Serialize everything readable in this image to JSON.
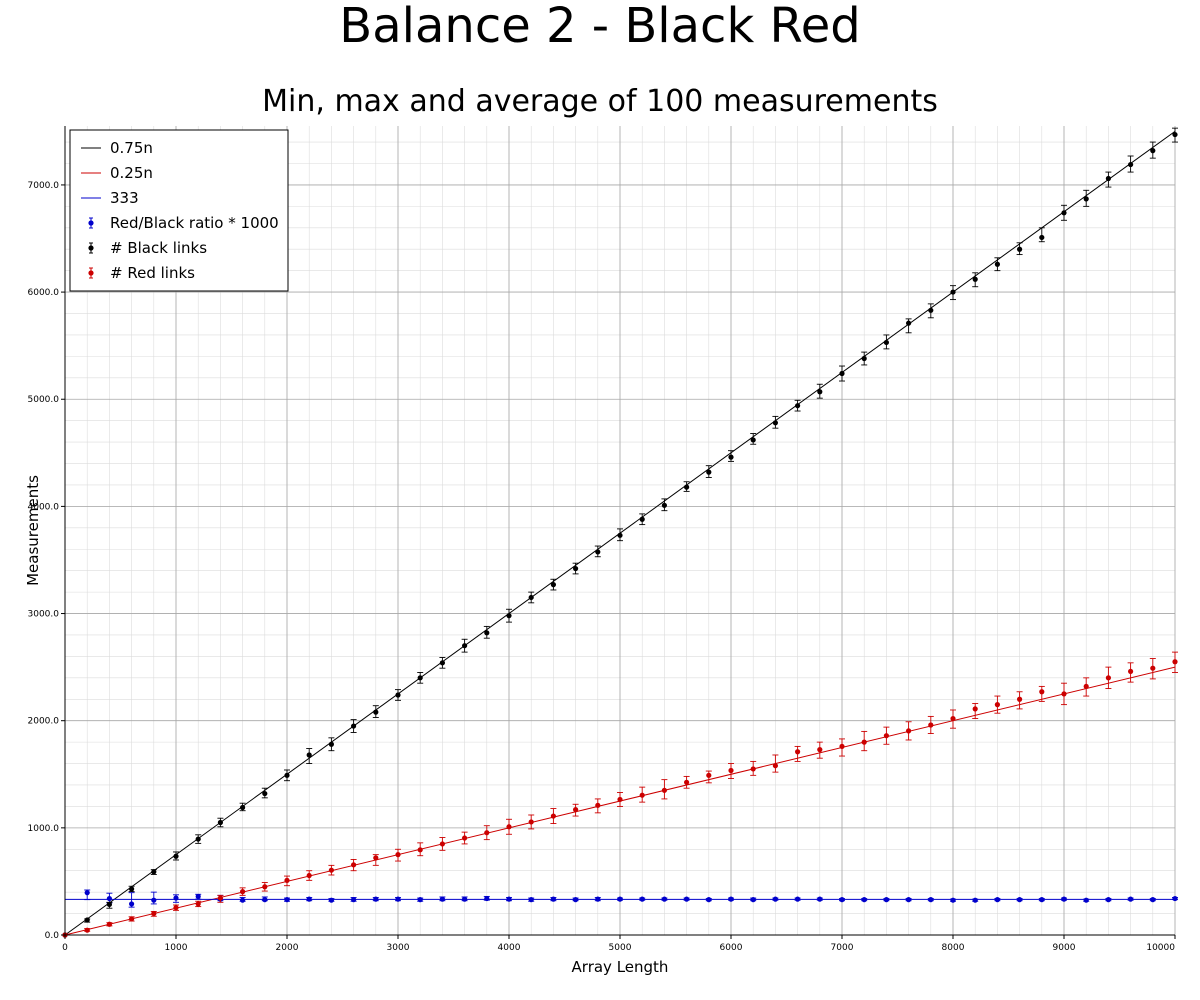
{
  "chart_data": {
    "type": "scatter",
    "title": "Balance 2 - Black Red",
    "subtitle": "Min, max and average of 100 measurements",
    "xlabel": "Array Length",
    "ylabel": "Measurements",
    "xlim": [
      0,
      10000
    ],
    "ylim": [
      0,
      7550
    ],
    "x_ticks": [
      0,
      1000,
      2000,
      3000,
      4000,
      5000,
      6000,
      7000,
      8000,
      9000,
      10000
    ],
    "x_tick_labels": [
      "0",
      "1000",
      "2000",
      "3000",
      "4000",
      "5000",
      "6000",
      "7000",
      "8000",
      "9000",
      "10000"
    ],
    "y_ticks": [
      0,
      1000,
      2000,
      3000,
      4000,
      5000,
      6000,
      7000
    ],
    "y_tick_labels": [
      "0.0",
      "1000.0",
      "2000.0",
      "3000.0",
      "4000.0",
      "5000.0",
      "6000.0",
      "7000.0"
    ],
    "grid": true,
    "legend_position": "top-left",
    "reference_lines": [
      {
        "name": "0.75n",
        "slope": 0.75,
        "intercept": 0,
        "color": "#000000"
      },
      {
        "name": "0.25n",
        "slope": 0.25,
        "intercept": 0,
        "color": "#cc0000"
      },
      {
        "name": "333",
        "slope": 0,
        "intercept": 333,
        "color": "#0000cc"
      }
    ],
    "x": [
      0,
      200,
      400,
      600,
      800,
      1000,
      1200,
      1400,
      1600,
      1800,
      2000,
      2200,
      2400,
      2600,
      2800,
      3000,
      3200,
      3400,
      3600,
      3800,
      4000,
      4200,
      4400,
      4600,
      4800,
      5000,
      5200,
      5400,
      5600,
      5800,
      6000,
      6200,
      6400,
      6600,
      6800,
      7000,
      7200,
      7400,
      7600,
      7800,
      8000,
      8200,
      8400,
      8600,
      8800,
      9000,
      9200,
      9400,
      9600,
      9800,
      10000
    ],
    "series": [
      {
        "name": "Red/Black ratio * 1000",
        "color": "#0000cc",
        "values": [
          0,
          395,
          340,
          290,
          325,
          345,
          360,
          335,
          325,
          330,
          330,
          335,
          325,
          330,
          335,
          335,
          330,
          335,
          335,
          340,
          335,
          330,
          335,
          330,
          335,
          335,
          335,
          335,
          335,
          330,
          335,
          330,
          335,
          335,
          335,
          330,
          330,
          330,
          330,
          330,
          325,
          325,
          330,
          330,
          330,
          335,
          325,
          330,
          335,
          330,
          340
        ],
        "min": [
          0,
          330,
          300,
          260,
          290,
          305,
          335,
          320,
          315,
          320,
          315,
          320,
          315,
          315,
          320,
          320,
          315,
          320,
          320,
          325,
          320,
          315,
          320,
          320,
          320,
          325,
          325,
          325,
          325,
          320,
          325,
          320,
          325,
          325,
          325,
          320,
          320,
          320,
          320,
          320,
          315,
          315,
          320,
          320,
          320,
          325,
          315,
          320,
          325,
          320,
          330
        ],
        "max": [
          0,
          420,
          390,
          395,
          400,
          375,
          380,
          370,
          350,
          355,
          345,
          350,
          340,
          350,
          350,
          350,
          345,
          355,
          355,
          360,
          350,
          345,
          350,
          345,
          350,
          345,
          345,
          345,
          345,
          340,
          345,
          345,
          345,
          345,
          345,
          340,
          340,
          340,
          340,
          340,
          335,
          335,
          340,
          340,
          340,
          345,
          335,
          340,
          345,
          340,
          350
        ]
      },
      {
        "name": "# Black links",
        "color": "#000000",
        "values": [
          0,
          140,
          285,
          430,
          590,
          735,
          895,
          1050,
          1190,
          1320,
          1490,
          1680,
          1780,
          1950,
          2080,
          2240,
          2400,
          2540,
          2700,
          2820,
          2980,
          3150,
          3270,
          3420,
          3575,
          3730,
          3880,
          4010,
          4180,
          4320,
          4460,
          4620,
          4780,
          4940,
          5070,
          5240,
          5380,
          5530,
          5710,
          5830,
          6000,
          6120,
          6260,
          6400,
          6510,
          6740,
          6870,
          7060,
          7190,
          7320,
          7470
        ],
        "min": [
          0,
          120,
          250,
          405,
          565,
          700,
          855,
          1010,
          1160,
          1280,
          1440,
          1600,
          1720,
          1890,
          2030,
          2190,
          2350,
          2490,
          2640,
          2770,
          2920,
          3100,
          3220,
          3370,
          3530,
          3680,
          3830,
          3960,
          4140,
          4270,
          4420,
          4580,
          4730,
          4890,
          5010,
          5170,
          5320,
          5470,
          5620,
          5760,
          5930,
          6050,
          6200,
          6350,
          6470,
          6670,
          6800,
          6980,
          7120,
          7250,
          7400
        ],
        "max": [
          0,
          150,
          305,
          455,
          610,
          775,
          935,
          1090,
          1230,
          1370,
          1540,
          1740,
          1840,
          2010,
          2140,
          2290,
          2450,
          2590,
          2760,
          2880,
          3040,
          3200,
          3320,
          3470,
          3630,
          3790,
          3930,
          4070,
          4230,
          4380,
          4520,
          4680,
          4840,
          4990,
          5140,
          5310,
          5440,
          5600,
          5750,
          5890,
          6060,
          6180,
          6320,
          6460,
          6600,
          6810,
          6950,
          7120,
          7270,
          7400,
          7530
        ]
      },
      {
        "name": "# Red links",
        "color": "#cc0000",
        "values": [
          0,
          45,
          100,
          150,
          200,
          255,
          290,
          345,
          405,
          450,
          510,
          555,
          605,
          655,
          720,
          750,
          795,
          850,
          905,
          955,
          1010,
          1055,
          1110,
          1170,
          1210,
          1265,
          1305,
          1350,
          1425,
          1490,
          1535,
          1550,
          1580,
          1710,
          1730,
          1760,
          1800,
          1860,
          1905,
          1960,
          2020,
          2110,
          2150,
          2200,
          2270,
          2250,
          2320,
          2400,
          2460,
          2490,
          2550
        ],
        "min": [
          0,
          35,
          85,
          130,
          175,
          230,
          265,
          305,
          370,
          410,
          460,
          510,
          560,
          600,
          650,
          690,
          740,
          790,
          850,
          890,
          940,
          990,
          1040,
          1110,
          1140,
          1200,
          1240,
          1270,
          1370,
          1420,
          1460,
          1490,
          1520,
          1620,
          1650,
          1670,
          1720,
          1780,
          1820,
          1880,
          1930,
          2020,
          2070,
          2110,
          2180,
          2150,
          2230,
          2300,
          2360,
          2390,
          2450
        ],
        "max": [
          0,
          60,
          115,
          170,
          220,
          280,
          315,
          370,
          440,
          490,
          550,
          600,
          650,
          705,
          750,
          800,
          860,
          910,
          960,
          1020,
          1080,
          1120,
          1180,
          1220,
          1270,
          1330,
          1380,
          1450,
          1480,
          1530,
          1600,
          1620,
          1680,
          1760,
          1800,
          1830,
          1900,
          1940,
          1990,
          2040,
          2100,
          2160,
          2230,
          2270,
          2320,
          2350,
          2400,
          2500,
          2540,
          2580,
          2640
        ]
      }
    ]
  }
}
